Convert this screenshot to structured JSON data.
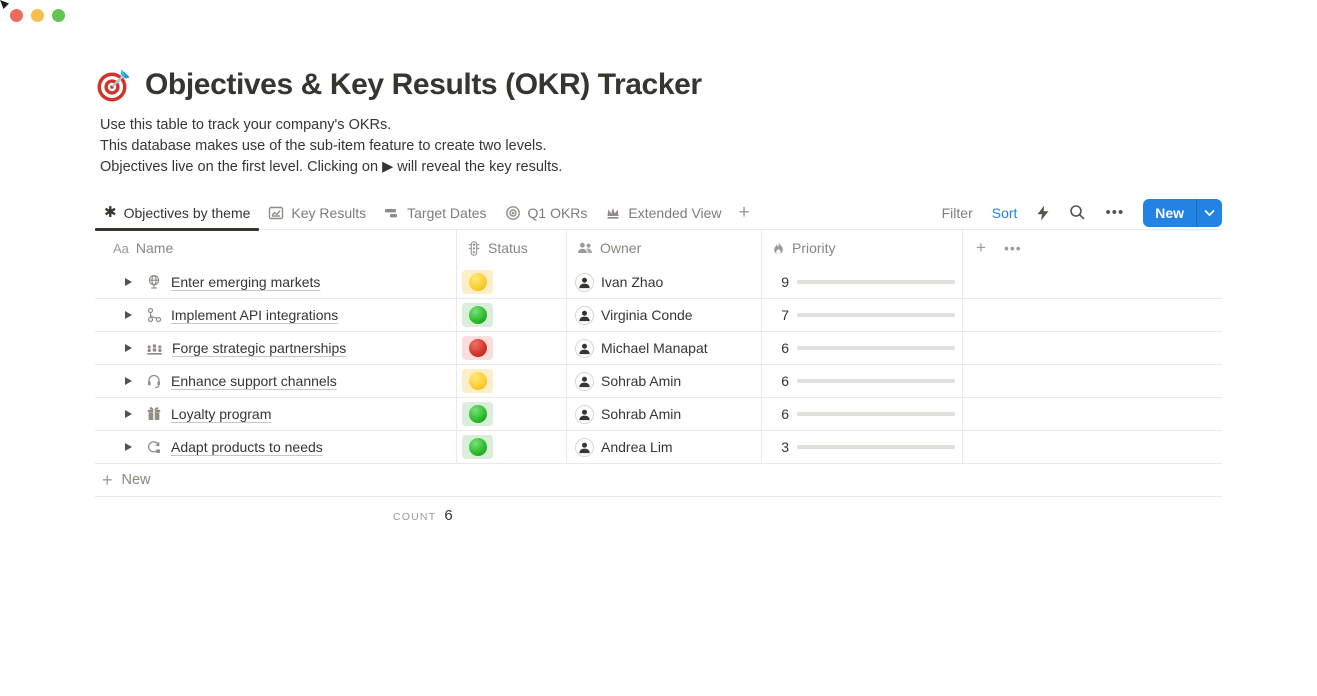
{
  "window": {
    "traffic_lights": [
      "close",
      "minimize",
      "zoom"
    ]
  },
  "page": {
    "emoji_icon": "dartboard-direct-hit-icon",
    "title": "Objectives & Key Results (OKR) Tracker",
    "description_lines": [
      "Use this table to track your company's OKRs.",
      "This database makes use of the sub-item feature to create two levels.",
      "Objectives live on the first level. Clicking on ▶ will reveal the key results."
    ]
  },
  "toolbar": {
    "tabs": [
      {
        "label": "Objectives by theme",
        "icon": "asterisk-view-icon",
        "active": true
      },
      {
        "label": "Key Results",
        "icon": "chart-view-icon",
        "active": false
      },
      {
        "label": "Target Dates",
        "icon": "timeline-view-icon",
        "active": false
      },
      {
        "label": "Q1 OKRs",
        "icon": "target-view-icon",
        "active": false
      },
      {
        "label": "Extended View",
        "icon": "crown-view-icon",
        "active": false
      }
    ],
    "add_view_label": "+",
    "filter_label": "Filter",
    "sort_label": "Sort",
    "icons": [
      "lightning-icon",
      "search-icon",
      "more-icon"
    ],
    "more_label": "•••",
    "new_button": {
      "label": "New",
      "chevron_icon": "chevron-down-icon"
    }
  },
  "table": {
    "columns": [
      {
        "label": "Name",
        "icon": "text-aa-icon",
        "icon_text": "Aa"
      },
      {
        "label": "Status",
        "icon": "traffic-light-icon"
      },
      {
        "label": "Owner",
        "icon": "people-icon"
      },
      {
        "label": "Priority",
        "icon": "flame-icon"
      }
    ],
    "header_extra": {
      "plus_label": "+",
      "more_label": "•••"
    },
    "priority_max": 10,
    "rows": [
      {
        "icon": "desk-globe-icon",
        "name": "Enter emerging markets",
        "status": "yellow",
        "owner": "Ivan Zhao",
        "priority": 9
      },
      {
        "icon": "workflow-branch-icon",
        "name": "Implement API integrations",
        "status": "green",
        "owner": "Virginia Conde",
        "priority": 7
      },
      {
        "icon": "people-meeting-icon",
        "name": "Forge strategic partnerships",
        "status": "red",
        "owner": "Michael Manapat",
        "priority": 6
      },
      {
        "icon": "headset-icon",
        "name": "Enhance support channels",
        "status": "yellow",
        "owner": "Sohrab Amin",
        "priority": 6
      },
      {
        "icon": "gift-icon",
        "name": "Loyalty program",
        "status": "green",
        "owner": "Sohrab Amin",
        "priority": 6
      },
      {
        "icon": "sync-loop-icon",
        "name": "Adapt products to needs",
        "status": "green",
        "owner": "Andrea Lim",
        "priority": 3
      }
    ],
    "new_row_label": "New",
    "footer": {
      "count_label": "COUNT",
      "count_value": "6"
    }
  },
  "colors": {
    "accent_blue": "#2383e2",
    "progress_green": "#5a8c69",
    "status_yellow_bg": "#fbeec9",
    "status_green_bg": "#dbeddb",
    "status_red_bg": "#fbdddb",
    "border": "#e9e9e7",
    "text_dark": "#37352f",
    "text_gray": "#87867f"
  }
}
